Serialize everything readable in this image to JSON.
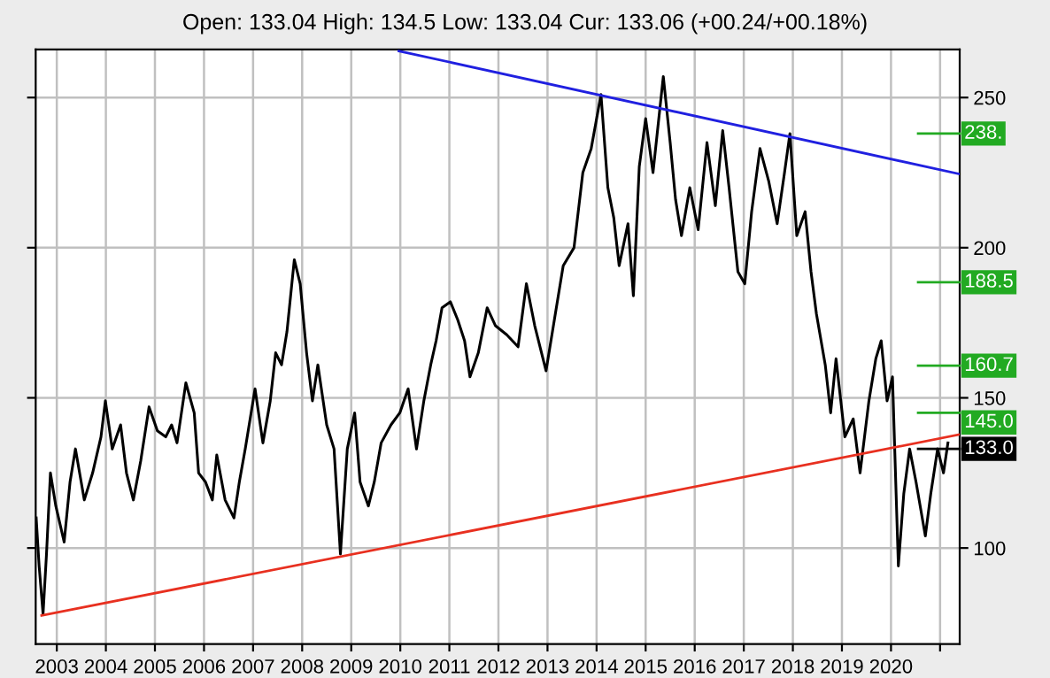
{
  "chart_data": {
    "type": "line",
    "title": "Open: 133.04 High: 134.5 Low: 133.04 Cur: 133.06 (+00.24/+00.18%)",
    "series": [
      {
        "color": "#000000",
        "x": [
          2002.58,
          2002.64,
          2002.72,
          2002.79,
          2002.87,
          2002.98,
          2003.15,
          2003.27,
          2003.38,
          2003.56,
          2003.73,
          2003.9,
          2003.99,
          2004.13,
          2004.3,
          2004.42,
          2004.56,
          2004.71,
          2004.88,
          2005.05,
          2005.22,
          2005.34,
          2005.45,
          2005.63,
          2005.8,
          2005.89,
          2006.03,
          2006.17,
          2006.26,
          2006.43,
          2006.61,
          2006.72,
          2006.84,
          2007.04,
          2007.2,
          2007.35,
          2007.46,
          2007.58,
          2007.69,
          2007.84,
          2007.96,
          2008.09,
          2008.21,
          2008.32,
          2008.5,
          2008.65,
          2008.78,
          2008.92,
          2009.07,
          2009.18,
          2009.35,
          2009.47,
          2009.61,
          2009.81,
          2009.99,
          2010.16,
          2010.33,
          2010.48,
          2010.62,
          2010.73,
          2010.85,
          2011.02,
          2011.17,
          2011.31,
          2011.42,
          2011.59,
          2011.77,
          2011.94,
          2012.17,
          2012.4,
          2012.57,
          2012.74,
          2012.97,
          2013.14,
          2013.32,
          2013.54,
          2013.72,
          2013.89,
          2014.09,
          2014.23,
          2014.35,
          2014.46,
          2014.64,
          2014.75,
          2014.87,
          2015.0,
          2015.15,
          2015.36,
          2015.5,
          2015.61,
          2015.73,
          2015.9,
          2016.07,
          2016.25,
          2016.42,
          2016.57,
          2016.7,
          2016.88,
          2017.02,
          2017.16,
          2017.33,
          2017.51,
          2017.68,
          2017.83,
          2017.94,
          2018.08,
          2018.25,
          2018.37,
          2018.48,
          2018.66,
          2018.77,
          2018.88,
          2019.06,
          2019.23,
          2019.37,
          2019.55,
          2019.69,
          2019.8,
          2019.92,
          2020.03,
          2020.15,
          2020.26,
          2020.38,
          2020.51,
          2020.7,
          2020.81,
          2020.95,
          2021.07,
          2021.16
        ],
        "values": [
          110,
          94,
          78,
          98,
          125,
          114,
          102,
          122,
          133,
          116,
          125,
          137,
          149,
          133,
          141,
          125,
          116,
          129,
          147,
          139,
          137,
          141,
          135,
          155,
          145,
          125,
          122,
          116,
          131,
          116,
          110,
          122,
          133,
          153,
          135,
          149,
          165,
          161,
          172,
          196,
          188,
          165,
          149,
          161,
          141,
          133,
          98,
          133,
          145,
          122,
          114,
          122,
          135,
          141,
          145,
          153,
          133,
          149,
          161,
          169,
          180,
          182,
          176,
          169,
          157,
          165,
          180,
          174,
          171,
          167,
          188,
          174,
          159,
          176,
          194,
          200,
          225,
          233,
          251,
          220,
          210,
          194,
          208,
          184,
          227,
          243,
          225,
          257,
          235,
          216,
          204,
          220,
          206,
          235,
          214,
          239,
          220,
          192,
          188,
          212,
          233,
          222,
          208,
          225,
          238,
          204,
          212,
          192,
          178,
          161,
          145,
          163,
          137,
          143,
          125,
          149,
          163,
          169,
          149,
          157,
          94,
          118,
          133,
          122,
          104,
          118,
          133,
          125,
          135
        ]
      },
      {
        "type": "line",
        "color": "#2020e0",
        "x": [
          2009.97,
          2021.4
        ],
        "values": [
          265.5,
          224.5
        ]
      },
      {
        "type": "line",
        "color": "#e83020",
        "x": [
          2002.69,
          2021.4
        ],
        "values": [
          77.5,
          137.8
        ]
      }
    ],
    "xlim": [
      2002.57,
      2021.4
    ],
    "xticks": [
      2003,
      2004,
      2005,
      2006,
      2007,
      2008,
      2009,
      2010,
      2011,
      2012,
      2013,
      2014,
      2015,
      2016,
      2017,
      2018,
      2019,
      2020,
      {
        "value": 2021,
        "label": null
      }
    ],
    "ylim": [
      68,
      266
    ],
    "yticks": [
      100,
      150,
      200,
      250
    ],
    "grid": true,
    "ref_lines": [
      {
        "axis": "y",
        "value": 238,
        "label": "238.",
        "color": "#22aa22"
      },
      {
        "axis": "y",
        "value": 188.5,
        "label": "188.5",
        "color": "#22aa22"
      },
      {
        "axis": "y",
        "value": 160.7,
        "label": "160.7",
        "color": "#22aa22"
      },
      {
        "axis": "y",
        "value": 145,
        "label": "145.0",
        "color": "#22aa22"
      },
      {
        "axis": "y",
        "value": 133,
        "label": "133.0",
        "color": "#000000"
      }
    ]
  }
}
